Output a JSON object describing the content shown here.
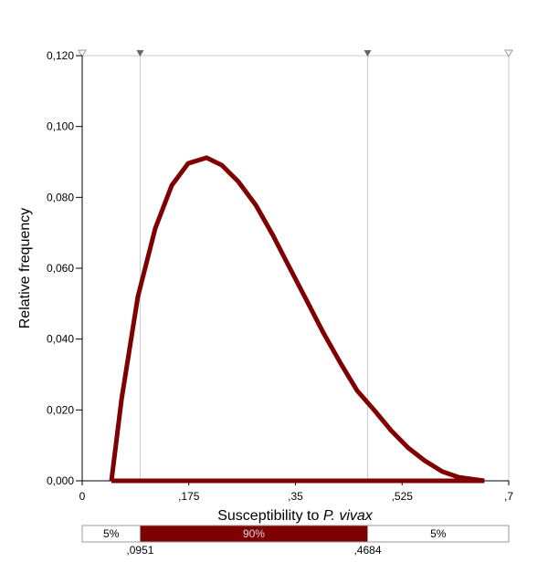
{
  "chart_data": {
    "type": "line",
    "ylabel": "Relative frequency",
    "xlabel": {
      "text": "Susceptibility to ",
      "italic": "P. vivax"
    },
    "x": [
      0.048,
      0.0645,
      0.0914,
      0.12,
      0.147,
      0.174,
      0.204,
      0.229,
      0.256,
      0.285,
      0.313,
      0.34,
      0.369,
      0.396,
      0.424,
      0.451,
      0.48,
      0.507,
      0.535,
      0.562,
      0.591,
      0.618,
      0.66
    ],
    "values": [
      0,
      0.0229,
      0.052,
      0.0713,
      0.0834,
      0.0896,
      0.0912,
      0.0891,
      0.0845,
      0.0778,
      0.0693,
      0.0603,
      0.0507,
      0.0417,
      0.0332,
      0.0255,
      0.0198,
      0.0142,
      0.0093,
      0.0057,
      0.0026,
      0.001,
      0
    ],
    "color": "#7f0000",
    "xlim": [
      0,
      0.7
    ],
    "xticks": [
      0,
      {
        "value": 0.175,
        "label": ",175"
      },
      {
        "value": 0.35,
        "label": ",35"
      },
      {
        "value": 0.525,
        "label": ",525"
      },
      {
        "value": 0.7,
        "label": ",7"
      }
    ],
    "ylim": [
      0,
      0.12
    ],
    "yticks": [
      {
        "value": 0,
        "label": "0,000"
      },
      {
        "value": 0.02,
        "label": "0,020"
      },
      {
        "value": 0.04,
        "label": "0,040"
      },
      {
        "value": 0.06,
        "label": "0,060"
      },
      {
        "value": 0.08,
        "label": "0,080"
      },
      {
        "value": 0.1,
        "label": "0,100"
      },
      {
        "value": 0.12,
        "label": "0,120"
      }
    ],
    "delimiters": [
      {
        "value": 0.0951,
        "label": ",0951"
      },
      {
        "value": 0.4684,
        "label": ",4684"
      }
    ],
    "bands": {
      "values": [
        5,
        90,
        5
      ],
      "value_labels": [
        "5%",
        "90%",
        "5%"
      ]
    }
  }
}
